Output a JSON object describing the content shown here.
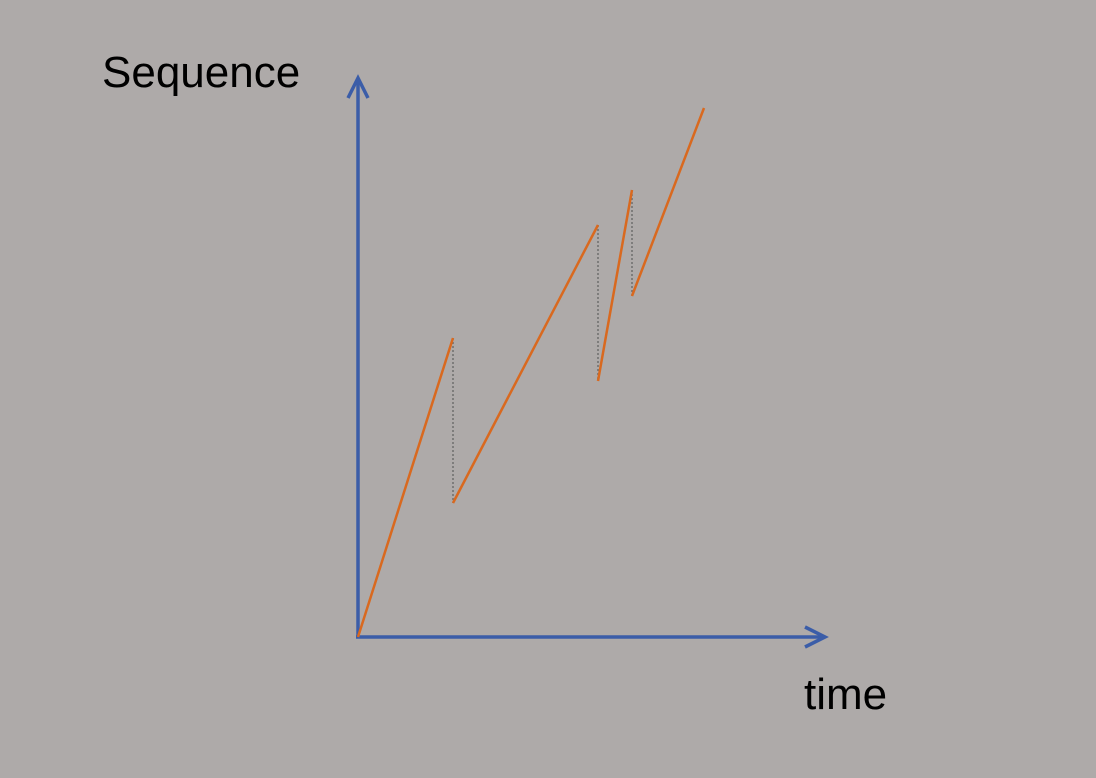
{
  "axes": {
    "y_label": "Sequence",
    "x_label": "time"
  }
}
